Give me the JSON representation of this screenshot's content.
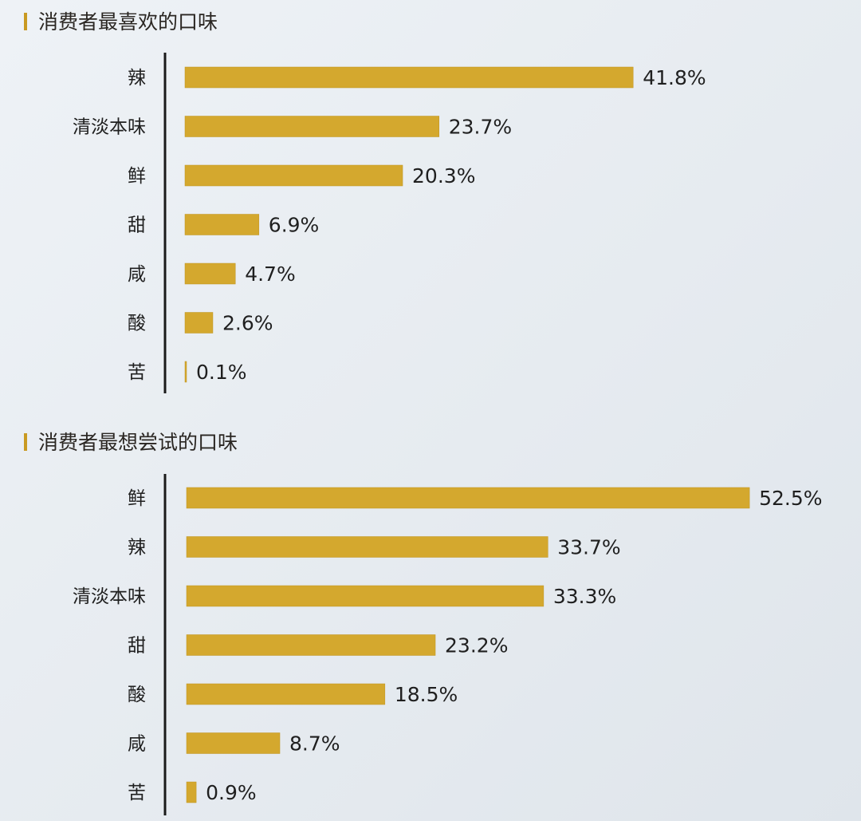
{
  "colors": {
    "bar": "#d4a82e",
    "bar_edge": "#bf9420",
    "marker": "#c99a22"
  },
  "chart_data": [
    {
      "type": "bar",
      "orientation": "horizontal",
      "title": "消费者最喜欢的口味",
      "categories": [
        "辣",
        "清淡本味",
        "鲜",
        "甜",
        "咸",
        "酸",
        "苦"
      ],
      "values": [
        41.8,
        23.7,
        20.3,
        6.9,
        4.7,
        2.6,
        0.1
      ],
      "value_labels": [
        "41.8%",
        "23.7%",
        "20.3%",
        "6.9%",
        "4.7%",
        "2.6%",
        "0.1%"
      ],
      "grid": false,
      "legend": "none"
    },
    {
      "type": "bar",
      "orientation": "horizontal",
      "title": "消费者最想尝试的口味",
      "categories": [
        "鲜",
        "辣",
        "清淡本味",
        "甜",
        "酸",
        "咸",
        "苦"
      ],
      "values": [
        52.5,
        33.7,
        33.3,
        23.2,
        18.5,
        8.7,
        0.9
      ],
      "value_labels": [
        "52.5%",
        "33.7%",
        "33.3%",
        "23.2%",
        "18.5%",
        "8.7%",
        "0.9%"
      ],
      "grid": false,
      "legend": "none"
    }
  ]
}
